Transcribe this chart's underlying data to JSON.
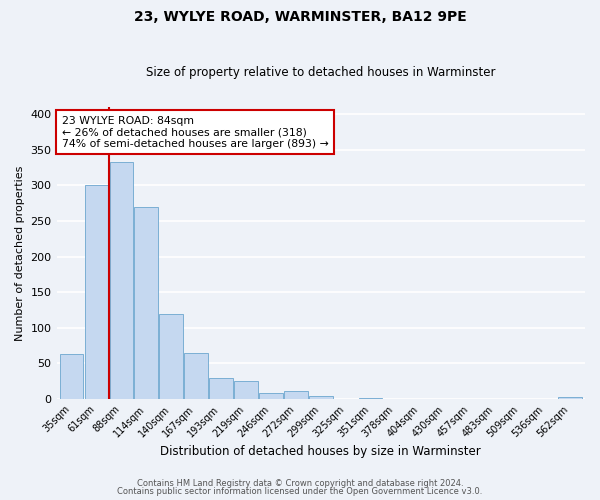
{
  "title": "23, WYLYE ROAD, WARMINSTER, BA12 9PE",
  "subtitle": "Size of property relative to detached houses in Warminster",
  "xlabel": "Distribution of detached houses by size in Warminster",
  "ylabel": "Number of detached properties",
  "bar_labels": [
    "35sqm",
    "61sqm",
    "88sqm",
    "114sqm",
    "140sqm",
    "167sqm",
    "193sqm",
    "219sqm",
    "246sqm",
    "272sqm",
    "299sqm",
    "325sqm",
    "351sqm",
    "378sqm",
    "404sqm",
    "430sqm",
    "457sqm",
    "483sqm",
    "509sqm",
    "536sqm",
    "562sqm"
  ],
  "bar_values": [
    63,
    300,
    333,
    270,
    119,
    65,
    29,
    25,
    8,
    11,
    5,
    0,
    1,
    0,
    0,
    0,
    0,
    0,
    0,
    0,
    3
  ],
  "bar_color": "#c5d8f0",
  "bar_edgecolor": "#7bafd4",
  "vline_color": "#cc0000",
  "annotation_title": "23 WYLYE ROAD: 84sqm",
  "annotation_line1": "← 26% of detached houses are smaller (318)",
  "annotation_line2": "74% of semi-detached houses are larger (893) →",
  "annotation_box_facecolor": "#ffffff",
  "annotation_box_edgecolor": "#cc0000",
  "ylim": [
    0,
    410
  ],
  "yticks": [
    0,
    50,
    100,
    150,
    200,
    250,
    300,
    350,
    400
  ],
  "footnote1": "Contains HM Land Registry data © Crown copyright and database right 2024.",
  "footnote2": "Contains public sector information licensed under the Open Government Licence v3.0.",
  "bg_color": "#eef2f8",
  "grid_color": "#ffffff"
}
